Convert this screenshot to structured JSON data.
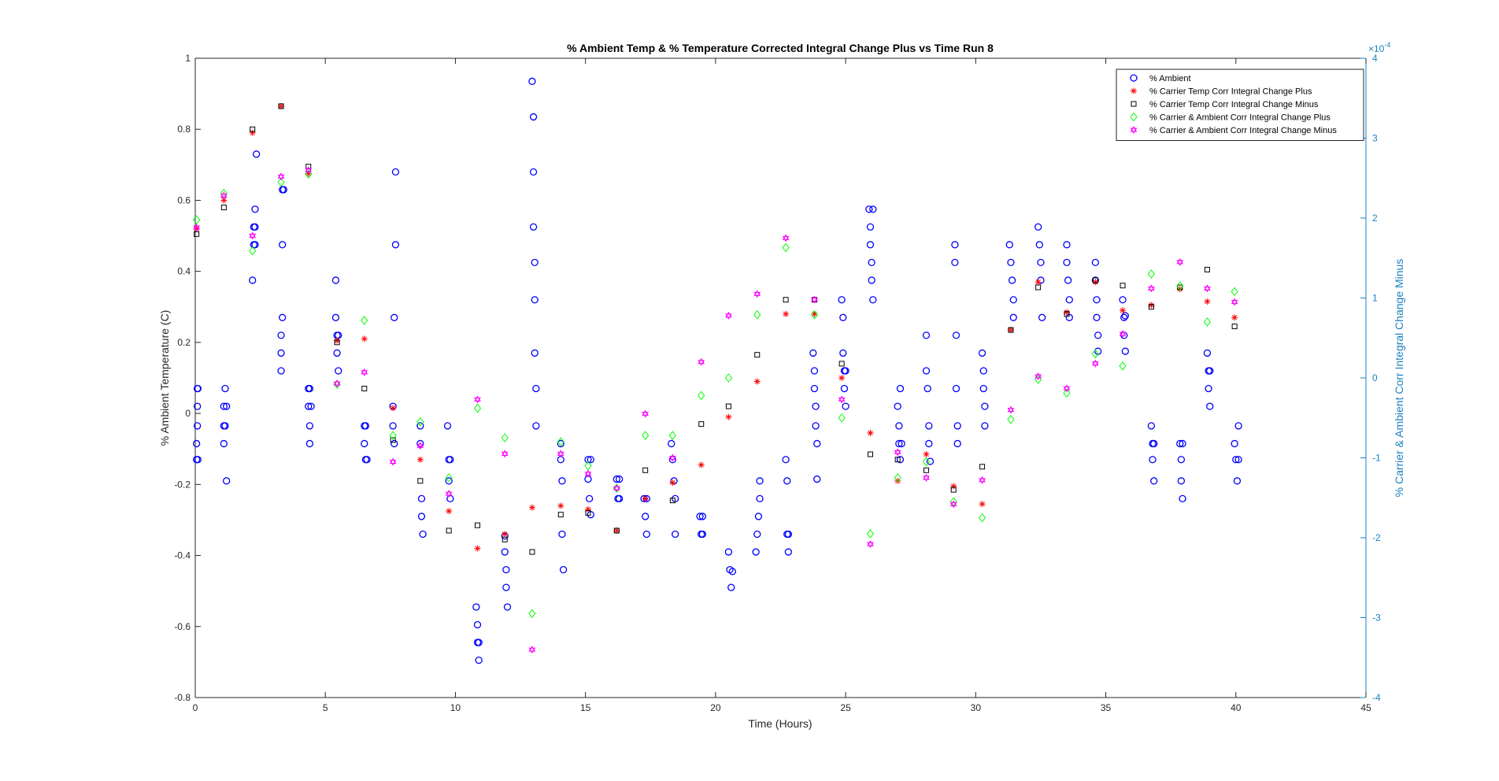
{
  "chart_data": {
    "type": "scatter",
    "title": "% Ambient Temp & % Temperature Corrected Integral Change Plus vs Time Run 8",
    "xlabel": "Time (Hours)",
    "ylabel": "% Ambient Temperature (C)",
    "ylabel_right": "% Carrier & Ambient Corr Integral Change Minus",
    "right_axis_exponent": "×10^-4",
    "right_axis_exponent_base": "×10",
    "right_axis_exponent_power": "-4",
    "xlim": [
      0,
      45
    ],
    "ylim": [
      -0.8,
      1
    ],
    "ylim_right": [
      -4,
      4
    ],
    "x_ticks": [
      0,
      5,
      10,
      15,
      20,
      25,
      30,
      35,
      40,
      45
    ],
    "y_ticks": [
      -0.8,
      -0.6,
      -0.4,
      -0.2,
      0,
      0.2,
      0.4,
      0.6,
      0.8,
      1
    ],
    "y_ticks_right": [
      -4,
      -3,
      -2,
      -1,
      0,
      1,
      2,
      3,
      4
    ],
    "x_tick_labels": [
      "0",
      "5",
      "10",
      "15",
      "20",
      "25",
      "30",
      "35",
      "40",
      "45"
    ],
    "y_tick_labels": [
      "-0.8",
      "-0.6",
      "-0.4",
      "-0.2",
      "0",
      "0.2",
      "0.4",
      "0.6",
      "0.8",
      "1"
    ],
    "y_tick_labels_right": [
      "-4",
      "-3",
      "-2",
      "-1",
      "0",
      "1",
      "2",
      "3",
      "4"
    ],
    "grid": false,
    "legend_position": "top-right",
    "series": [
      {
        "name": "% Ambient",
        "marker": "circle",
        "color": "#0000ff",
        "axis": "left",
        "x": [
          0.05,
          0.05,
          0.08,
          0.08,
          0.08,
          0.1,
          0.1,
          1.1,
          1.1,
          1.1,
          1.15,
          1.15,
          1.2,
          1.2,
          2.2,
          2.25,
          2.25,
          2.3,
          2.3,
          2.3,
          2.35,
          3.3,
          3.3,
          3.3,
          3.35,
          3.35,
          3.35,
          3.4,
          4.35,
          4.35,
          4.4,
          4.4,
          4.4,
          4.45,
          5.4,
          5.4,
          5.45,
          5.45,
          5.5,
          5.5,
          6.5,
          6.5,
          6.55,
          6.55,
          6.6,
          7.6,
          7.6,
          7.65,
          7.65,
          7.7,
          7.7,
          8.65,
          8.65,
          8.7,
          8.7,
          8.75,
          9.7,
          9.75,
          9.75,
          9.8,
          9.8,
          10.8,
          10.85,
          10.85,
          10.9,
          10.9,
          11.9,
          11.9,
          11.95,
          11.95,
          12.0,
          12.95,
          13.0,
          13.0,
          13.0,
          13.05,
          13.05,
          13.05,
          13.1,
          13.1,
          14.05,
          14.05,
          14.1,
          14.1,
          14.15,
          15.1,
          15.1,
          15.15,
          15.2,
          15.2,
          16.2,
          16.25,
          16.3,
          16.3,
          17.25,
          17.3,
          17.35,
          17.35,
          18.3,
          18.35,
          18.4,
          18.45,
          18.45,
          19.4,
          19.45,
          19.5,
          19.5,
          20.5,
          20.55,
          20.6,
          20.65,
          21.55,
          21.6,
          21.65,
          21.7,
          21.7,
          22.7,
          22.75,
          22.75,
          22.8,
          22.8,
          23.75,
          23.8,
          23.8,
          23.85,
          23.85,
          23.9,
          23.9,
          24.85,
          24.9,
          24.9,
          24.95,
          24.95,
          25.0,
          25.0,
          25.9,
          25.95,
          25.95,
          26.0,
          26.0,
          26.05,
          26.05,
          27.0,
          27.05,
          27.05,
          27.1,
          27.1,
          27.15,
          28.1,
          28.1,
          28.15,
          28.2,
          28.2,
          28.25,
          29.2,
          29.2,
          29.25,
          29.25,
          29.3,
          29.3,
          30.25,
          30.3,
          30.3,
          30.35,
          30.35,
          31.3,
          31.35,
          31.4,
          31.45,
          31.45,
          32.4,
          32.45,
          32.5,
          32.5,
          32.55,
          33.5,
          33.5,
          33.55,
          33.6,
          33.6,
          34.6,
          34.6,
          34.65,
          34.65,
          34.7,
          34.7,
          35.65,
          35.7,
          35.7,
          35.75,
          35.75,
          36.75,
          36.8,
          36.8,
          36.85,
          36.85,
          37.85,
          37.9,
          37.9,
          37.95,
          37.95,
          38.9,
          38.95,
          38.95,
          39.0,
          39.0,
          39.95,
          40.0,
          40.05,
          40.1,
          40.1
        ],
        "y": [
          -0.13,
          -0.085,
          0.07,
          0.02,
          -0.035,
          -0.13,
          0.07,
          0.02,
          -0.035,
          -0.085,
          -0.035,
          0.07,
          -0.19,
          0.02,
          0.375,
          0.475,
          0.525,
          0.575,
          0.525,
          0.475,
          0.73,
          0.12,
          0.17,
          0.22,
          0.27,
          0.475,
          0.63,
          0.63,
          0.07,
          0.02,
          -0.035,
          -0.085,
          0.07,
          0.02,
          0.375,
          0.27,
          0.22,
          0.17,
          0.12,
          0.22,
          -0.035,
          -0.085,
          -0.13,
          -0.035,
          -0.13,
          0.02,
          -0.035,
          -0.085,
          0.27,
          0.475,
          0.68,
          -0.035,
          -0.085,
          -0.24,
          -0.29,
          -0.34,
          -0.035,
          -0.13,
          -0.19,
          -0.24,
          -0.13,
          -0.545,
          -0.595,
          -0.645,
          -0.695,
          -0.645,
          -0.345,
          -0.39,
          -0.44,
          -0.49,
          -0.545,
          0.935,
          0.835,
          0.68,
          0.525,
          0.425,
          0.32,
          0.17,
          0.07,
          -0.035,
          -0.085,
          -0.13,
          -0.19,
          -0.34,
          -0.44,
          -0.13,
          -0.185,
          -0.24,
          -0.285,
          -0.13,
          -0.185,
          -0.24,
          -0.185,
          -0.24,
          -0.24,
          -0.29,
          -0.34,
          -0.24,
          -0.085,
          -0.13,
          -0.19,
          -0.24,
          -0.34,
          -0.29,
          -0.34,
          -0.29,
          -0.34,
          -0.39,
          -0.44,
          -0.49,
          -0.445,
          -0.39,
          -0.34,
          -0.29,
          -0.24,
          -0.19,
          -0.13,
          -0.19,
          -0.34,
          -0.39,
          -0.34,
          0.17,
          0.12,
          0.07,
          0.02,
          -0.035,
          -0.085,
          -0.185,
          0.32,
          0.27,
          0.17,
          0.12,
          0.07,
          0.02,
          0.12,
          0.575,
          0.525,
          0.475,
          0.425,
          0.375,
          0.32,
          0.575,
          0.02,
          -0.035,
          -0.085,
          -0.13,
          0.07,
          -0.085,
          0.22,
          0.12,
          0.07,
          -0.035,
          -0.085,
          -0.135,
          0.475,
          0.425,
          0.22,
          0.07,
          -0.035,
          -0.085,
          0.17,
          0.12,
          0.07,
          0.02,
          -0.035,
          0.475,
          0.425,
          0.375,
          0.32,
          0.27,
          0.525,
          0.475,
          0.425,
          0.375,
          0.27,
          0.475,
          0.425,
          0.375,
          0.32,
          0.27,
          0.425,
          0.375,
          0.32,
          0.27,
          0.22,
          0.175,
          0.32,
          0.27,
          0.22,
          0.175,
          0.275,
          -0.035,
          -0.085,
          -0.13,
          -0.19,
          -0.085,
          -0.085,
          -0.13,
          -0.19,
          -0.24,
          -0.085,
          0.17,
          0.12,
          0.07,
          0.02,
          0.12,
          -0.085,
          -0.13,
          -0.19,
          -0.035,
          -0.13
        ]
      },
      {
        "name": "% Carrier Temp Corr Integral Change Plus",
        "marker": "asterisk",
        "color": "#ff0000",
        "axis": "left",
        "x": [
          0.05,
          1.1,
          2.2,
          3.3,
          4.35,
          5.45,
          6.5,
          7.6,
          8.65,
          9.75,
          10.85,
          11.9,
          12.95,
          14.05,
          15.1,
          16.2,
          17.3,
          18.35,
          19.45,
          20.5,
          21.6,
          22.7,
          23.8,
          24.85,
          25.95,
          27.0,
          28.1,
          29.15,
          30.25,
          31.35,
          32.4,
          33.5,
          34.6,
          35.65,
          36.75,
          37.85,
          38.9,
          39.95
        ],
        "y": [
          0.52,
          0.6,
          0.79,
          0.865,
          0.675,
          0.205,
          0.21,
          0.015,
          -0.13,
          -0.275,
          -0.38,
          -0.34,
          -0.265,
          -0.26,
          -0.27,
          -0.33,
          -0.24,
          -0.195,
          -0.145,
          -0.01,
          0.09,
          0.28,
          0.28,
          0.1,
          -0.055,
          -0.19,
          -0.115,
          -0.205,
          -0.255,
          0.235,
          0.37,
          0.285,
          0.37,
          0.29,
          0.305,
          0.35,
          0.315,
          0.27
        ]
      },
      {
        "name": "% Carrier Temp Corr Integral Change Minus",
        "marker": "square",
        "color": "#000000",
        "axis": "left",
        "x": [
          0.05,
          1.1,
          2.2,
          3.3,
          4.35,
          5.45,
          6.5,
          7.6,
          8.65,
          9.75,
          10.85,
          11.9,
          12.95,
          14.05,
          15.1,
          16.2,
          17.3,
          18.35,
          19.45,
          20.5,
          21.6,
          22.7,
          23.8,
          24.85,
          25.95,
          27.0,
          28.1,
          29.15,
          30.25,
          31.35,
          32.4,
          33.5,
          34.6,
          35.65,
          36.75,
          37.85,
          38.9,
          39.95
        ],
        "y": [
          0.505,
          0.58,
          0.8,
          0.865,
          0.695,
          0.2,
          0.07,
          -0.075,
          -0.19,
          -0.33,
          -0.315,
          -0.355,
          -0.39,
          -0.285,
          -0.28,
          -0.33,
          -0.16,
          -0.245,
          -0.03,
          0.02,
          0.165,
          0.32,
          0.32,
          0.14,
          -0.115,
          -0.13,
          -0.16,
          -0.215,
          -0.15,
          0.235,
          0.355,
          0.28,
          0.375,
          0.36,
          0.3,
          0.355,
          0.405,
          0.245
        ]
      },
      {
        "name": "% Carrier & Ambient Corr Integral Change Plus",
        "marker": "diamond",
        "color": "#00ff00",
        "axis": "right",
        "x": [
          0.05,
          1.1,
          2.2,
          3.3,
          4.35,
          5.45,
          6.5,
          7.6,
          8.65,
          9.75,
          10.85,
          11.9,
          12.95,
          14.05,
          15.1,
          16.2,
          17.3,
          18.35,
          19.45,
          20.5,
          21.6,
          22.7,
          23.8,
          24.85,
          25.95,
          27.0,
          28.1,
          29.15,
          30.25,
          31.35,
          32.4,
          33.5,
          34.6,
          35.65,
          36.75,
          37.85,
          38.9,
          39.95
        ],
        "y": [
          1.98,
          2.31,
          1.59,
          2.45,
          2.55,
          -0.08,
          0.72,
          -0.72,
          -0.55,
          -1.25,
          -0.38,
          -0.75,
          -2.95,
          -0.8,
          -1.1,
          -1.38,
          -0.72,
          -0.72,
          -0.22,
          0.0,
          0.79,
          1.63,
          0.79,
          -0.5,
          -1.95,
          -1.25,
          -1.05,
          -1.55,
          -1.75,
          -0.52,
          -0.02,
          -0.19,
          0.3,
          0.15,
          1.3,
          1.15,
          0.7,
          1.08
        ]
      },
      {
        "name": "% Carrier & Ambient Corr Integral Change Minus",
        "marker": "hexagram",
        "color": "#ff00ff",
        "axis": "right",
        "x": [
          0.05,
          1.1,
          2.2,
          3.3,
          4.35,
          5.45,
          6.5,
          7.6,
          8.65,
          9.75,
          10.85,
          11.9,
          12.95,
          14.05,
          15.1,
          16.2,
          17.3,
          18.35,
          19.45,
          20.5,
          21.6,
          22.7,
          23.8,
          24.85,
          25.95,
          27.0,
          28.1,
          29.15,
          30.25,
          31.35,
          32.4,
          33.5,
          34.6,
          35.65,
          36.75,
          37.85,
          38.9,
          39.95
        ],
        "y": [
          1.88,
          2.28,
          1.78,
          2.52,
          2.6,
          -0.07,
          0.07,
          -1.05,
          -0.85,
          -1.45,
          -0.27,
          -0.95,
          -3.4,
          -0.95,
          -1.2,
          -1.38,
          -0.45,
          -1.0,
          0.2,
          0.78,
          1.05,
          1.75,
          0.98,
          -0.27,
          -2.08,
          -0.93,
          -1.25,
          -1.58,
          -1.28,
          -0.4,
          0.02,
          -0.13,
          0.18,
          0.55,
          1.12,
          1.45,
          1.12,
          0.95
        ]
      }
    ]
  }
}
